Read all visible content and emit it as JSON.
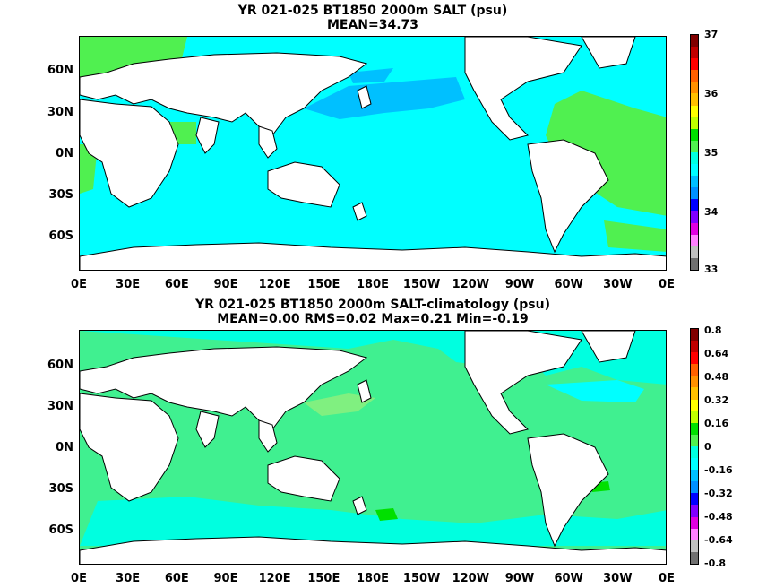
{
  "panels": [
    {
      "title_line1": "YR 021-025 BT1850 2000m SALT (psu)",
      "title_line2": "MEAN=34.73",
      "ocean_color": "#00ffff",
      "colorbar": {
        "ticks": [
          "37",
          "36",
          "35",
          "34",
          "33"
        ],
        "colors": [
          "#800000",
          "#c00000",
          "#ff0000",
          "#ff6000",
          "#ff9000",
          "#ffc000",
          "#ffff00",
          "#c0ff00",
          "#00e000",
          "#50f050",
          "#00ffe0",
          "#00ffff",
          "#00c0ff",
          "#0090ff",
          "#0000ff",
          "#8000ff",
          "#e000e0",
          "#ff80ff",
          "#c0c0c0",
          "#707070"
        ]
      }
    },
    {
      "title_line1": "YR 021-025 BT1850 2000m SALT-climatology (psu)",
      "title_line2": "MEAN=0.00   RMS=0.02   Max=0.21   Min=-0.19",
      "ocean_color": "#40f090",
      "colorbar": {
        "ticks": [
          "0.8",
          "0.64",
          "0.48",
          "0.32",
          "0.16",
          "0",
          "-0.16",
          "-0.32",
          "-0.48",
          "-0.64",
          "-0.8"
        ],
        "colors": [
          "#800000",
          "#c00000",
          "#ff0000",
          "#ff6000",
          "#ff9000",
          "#ffc000",
          "#ffff00",
          "#c0ff00",
          "#00e000",
          "#50f050",
          "#00ffe0",
          "#00ffff",
          "#00c0ff",
          "#0090ff",
          "#0000ff",
          "#8000ff",
          "#e000e0",
          "#ff80ff",
          "#c0c0c0",
          "#707070"
        ]
      }
    }
  ],
  "lat_labels": [
    "60N",
    "30N",
    "0N",
    "30S",
    "60S"
  ],
  "lon_labels": [
    "0E",
    "30E",
    "60E",
    "90E",
    "120E",
    "150E",
    "180E",
    "150W",
    "120W",
    "90W",
    "60W",
    "30W",
    "0E"
  ]
}
